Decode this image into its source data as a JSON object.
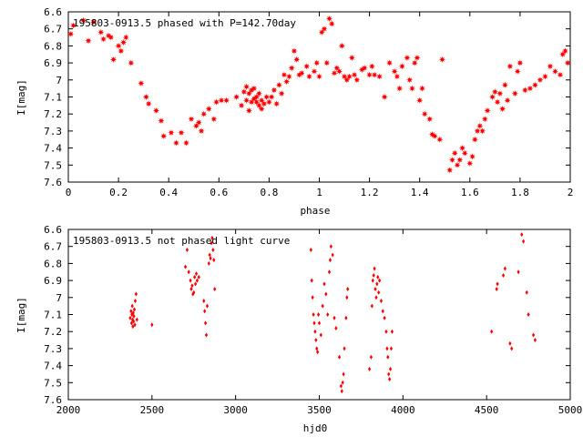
{
  "colors": {
    "points": "#ff0000",
    "axes": "#000000",
    "background": "#ffffff"
  },
  "chart_data": [
    {
      "type": "scatter",
      "title": "195803-0913.5 phased with P=142.70day",
      "xlabel": "phase",
      "ylabel": "I[mag]",
      "xlim": [
        0,
        2
      ],
      "ylim": [
        6.6,
        7.6
      ],
      "y_inverted": true,
      "grid": false,
      "marker": "star",
      "xticks": [
        0,
        0.2,
        0.4,
        0.6,
        0.8,
        1,
        1.2,
        1.4,
        1.6,
        1.8,
        2
      ],
      "xtick_labels": [
        "0",
        "0.2",
        "0.4",
        "0.6",
        "0.8",
        "1",
        "1.2",
        "1.4",
        "1.6",
        "1.8",
        "2"
      ],
      "yticks": [
        6.6,
        6.7,
        6.8,
        6.9,
        7.0,
        7.1,
        7.2,
        7.3,
        7.4,
        7.5,
        7.6
      ],
      "ytick_labels": [
        "6.6",
        "6.7",
        "6.8",
        "6.9",
        "7",
        "7.1",
        "7.2",
        "7.3",
        "7.4",
        "7.5",
        "7.6"
      ],
      "points": [
        [
          0.01,
          6.73
        ],
        [
          0.02,
          6.68
        ],
        [
          0.06,
          6.65
        ],
        [
          0.08,
          6.77
        ],
        [
          0.1,
          6.66
        ],
        [
          0.13,
          6.72
        ],
        [
          0.14,
          6.76
        ],
        [
          0.16,
          6.74
        ],
        [
          0.17,
          6.75
        ],
        [
          0.18,
          6.88
        ],
        [
          0.2,
          6.8
        ],
        [
          0.21,
          6.83
        ],
        [
          0.22,
          6.78
        ],
        [
          0.23,
          6.75
        ],
        [
          0.25,
          6.9
        ],
        [
          0.29,
          7.02
        ],
        [
          0.31,
          7.1
        ],
        [
          0.32,
          7.14
        ],
        [
          0.35,
          7.18
        ],
        [
          0.37,
          7.24
        ],
        [
          0.38,
          7.33
        ],
        [
          0.41,
          7.31
        ],
        [
          0.43,
          7.37
        ],
        [
          0.45,
          7.31
        ],
        [
          0.47,
          7.37
        ],
        [
          0.49,
          7.23
        ],
        [
          0.51,
          7.27
        ],
        [
          0.52,
          7.25
        ],
        [
          0.53,
          7.3
        ],
        [
          0.54,
          7.2
        ],
        [
          0.56,
          7.17
        ],
        [
          0.58,
          7.23
        ],
        [
          0.59,
          7.13
        ],
        [
          0.61,
          7.12
        ],
        [
          0.63,
          7.12
        ],
        [
          0.67,
          7.1
        ],
        [
          0.69,
          7.15
        ],
        [
          0.7,
          7.07
        ],
        [
          0.71,
          7.12
        ],
        [
          0.71,
          7.04
        ],
        [
          0.72,
          7.08
        ],
        [
          0.72,
          7.18
        ],
        [
          0.73,
          7.13
        ],
        [
          0.73,
          7.06
        ],
        [
          0.74,
          7.11
        ],
        [
          0.74,
          7.05
        ],
        [
          0.75,
          7.1
        ],
        [
          0.75,
          7.13
        ],
        [
          0.76,
          7.08
        ],
        [
          0.76,
          7.15
        ],
        [
          0.77,
          7.12
        ],
        [
          0.77,
          7.17
        ],
        [
          0.78,
          7.14
        ],
        [
          0.79,
          7.1
        ],
        [
          0.8,
          7.13
        ],
        [
          0.81,
          7.1
        ],
        [
          0.82,
          7.06
        ],
        [
          0.83,
          7.14
        ],
        [
          0.84,
          7.03
        ],
        [
          0.85,
          7.08
        ],
        [
          0.86,
          6.97
        ],
        [
          0.87,
          7.01
        ],
        [
          0.88,
          6.98
        ],
        [
          0.89,
          6.93
        ],
        [
          0.9,
          6.83
        ],
        [
          0.91,
          6.88
        ],
        [
          0.92,
          6.97
        ],
        [
          0.93,
          6.96
        ],
        [
          0.95,
          6.92
        ],
        [
          0.96,
          6.98
        ],
        [
          0.98,
          6.95
        ],
        [
          0.99,
          6.9
        ],
        [
          1.0,
          6.98
        ],
        [
          1.01,
          6.72
        ],
        [
          1.02,
          6.7
        ],
        [
          1.03,
          6.9
        ],
        [
          1.04,
          6.64
        ],
        [
          1.05,
          6.67
        ],
        [
          1.06,
          6.96
        ],
        [
          1.07,
          6.93
        ],
        [
          1.08,
          6.95
        ],
        [
          1.09,
          6.8
        ],
        [
          1.1,
          6.98
        ],
        [
          1.11,
          7.0
        ],
        [
          1.12,
          6.98
        ],
        [
          1.13,
          6.87
        ],
        [
          1.14,
          6.97
        ],
        [
          1.15,
          7.0
        ],
        [
          1.17,
          6.94
        ],
        [
          1.18,
          6.93
        ],
        [
          1.2,
          6.97
        ],
        [
          1.21,
          6.92
        ],
        [
          1.22,
          6.97
        ],
        [
          1.24,
          6.98
        ],
        [
          1.26,
          7.1
        ],
        [
          1.28,
          6.9
        ],
        [
          1.3,
          6.95
        ],
        [
          1.31,
          6.98
        ],
        [
          1.32,
          7.05
        ],
        [
          1.33,
          6.92
        ],
        [
          1.35,
          6.87
        ],
        [
          1.36,
          7.0
        ],
        [
          1.37,
          7.05
        ],
        [
          1.38,
          6.9
        ],
        [
          1.39,
          6.87
        ],
        [
          1.4,
          7.12
        ],
        [
          1.41,
          7.05
        ],
        [
          1.42,
          7.2
        ],
        [
          1.44,
          7.23
        ],
        [
          1.45,
          7.32
        ],
        [
          1.46,
          7.33
        ],
        [
          1.48,
          7.35
        ],
        [
          1.49,
          6.88
        ],
        [
          1.52,
          7.53
        ],
        [
          1.53,
          7.47
        ],
        [
          1.54,
          7.43
        ],
        [
          1.55,
          7.5
        ],
        [
          1.56,
          7.47
        ],
        [
          1.57,
          7.4
        ],
        [
          1.58,
          7.43
        ],
        [
          1.6,
          7.49
        ],
        [
          1.61,
          7.45
        ],
        [
          1.62,
          7.35
        ],
        [
          1.63,
          7.3
        ],
        [
          1.64,
          7.27
        ],
        [
          1.65,
          7.3
        ],
        [
          1.66,
          7.23
        ],
        [
          1.67,
          7.18
        ],
        [
          1.69,
          7.1
        ],
        [
          1.7,
          7.07
        ],
        [
          1.71,
          7.13
        ],
        [
          1.72,
          7.08
        ],
        [
          1.73,
          7.17
        ],
        [
          1.74,
          7.03
        ],
        [
          1.75,
          7.12
        ],
        [
          1.76,
          6.92
        ],
        [
          1.78,
          7.08
        ],
        [
          1.79,
          6.95
        ],
        [
          1.8,
          6.9
        ],
        [
          1.82,
          7.06
        ],
        [
          1.84,
          7.05
        ],
        [
          1.86,
          7.03
        ],
        [
          1.88,
          7.0
        ],
        [
          1.9,
          6.98
        ],
        [
          1.92,
          6.92
        ],
        [
          1.94,
          6.95
        ],
        [
          1.96,
          6.97
        ],
        [
          1.97,
          6.85
        ],
        [
          1.98,
          6.83
        ],
        [
          1.99,
          6.9
        ]
      ]
    },
    {
      "type": "scatter",
      "title": "195803-0913.5 not phased light curve",
      "xlabel": "hjd0",
      "ylabel": "I[mag]",
      "xlim": [
        2000,
        5000
      ],
      "ylim": [
        6.6,
        7.6
      ],
      "y_inverted": true,
      "grid": false,
      "marker": "diamond",
      "xticks": [
        2000,
        2500,
        3000,
        3500,
        4000,
        4500,
        5000
      ],
      "xtick_labels": [
        "2000",
        "2500",
        "3000",
        "3500",
        "4000",
        "4500",
        "5000"
      ],
      "yticks": [
        6.6,
        6.7,
        6.8,
        6.9,
        7.0,
        7.1,
        7.2,
        7.3,
        7.4,
        7.5,
        7.6
      ],
      "ytick_labels": [
        "6.6",
        "6.7",
        "6.8",
        "6.9",
        "7",
        "7.1",
        "7.2",
        "7.3",
        "7.4",
        "7.5",
        "7.6"
      ],
      "points": [
        [
          2370,
          7.12
        ],
        [
          2375,
          7.08
        ],
        [
          2378,
          7.15
        ],
        [
          2380,
          7.1
        ],
        [
          2382,
          7.05
        ],
        [
          2384,
          7.13
        ],
        [
          2386,
          7.17
        ],
        [
          2388,
          7.09
        ],
        [
          2390,
          7.14
        ],
        [
          2392,
          7.11
        ],
        [
          2395,
          7.07
        ],
        [
          2398,
          7.16
        ],
        [
          2400,
          7.02
        ],
        [
          2405,
          6.98
        ],
        [
          2410,
          7.13
        ],
        [
          2500,
          7.16
        ],
        [
          2700,
          6.82
        ],
        [
          2710,
          6.72
        ],
        [
          2720,
          6.85
        ],
        [
          2730,
          6.9
        ],
        [
          2735,
          6.95
        ],
        [
          2740,
          6.93
        ],
        [
          2745,
          6.98
        ],
        [
          2750,
          6.97
        ],
        [
          2755,
          6.88
        ],
        [
          2760,
          6.92
        ],
        [
          2765,
          6.86
        ],
        [
          2770,
          6.9
        ],
        [
          2780,
          6.88
        ],
        [
          2810,
          7.02
        ],
        [
          2815,
          7.08
        ],
        [
          2820,
          7.15
        ],
        [
          2825,
          7.22
        ],
        [
          2830,
          7.05
        ],
        [
          2840,
          6.8
        ],
        [
          2845,
          6.75
        ],
        [
          2850,
          6.77
        ],
        [
          2855,
          6.68
        ],
        [
          2860,
          6.65
        ],
        [
          2865,
          6.72
        ],
        [
          2870,
          6.78
        ],
        [
          2875,
          6.95
        ],
        [
          3450,
          6.72
        ],
        [
          3455,
          6.9
        ],
        [
          3460,
          7.0
        ],
        [
          3465,
          7.1
        ],
        [
          3470,
          7.15
        ],
        [
          3475,
          7.2
        ],
        [
          3480,
          7.25
        ],
        [
          3485,
          7.3
        ],
        [
          3490,
          7.32
        ],
        [
          3495,
          7.1
        ],
        [
          3500,
          7.15
        ],
        [
          3510,
          7.22
        ],
        [
          3520,
          7.05
        ],
        [
          3530,
          6.92
        ],
        [
          3540,
          6.98
        ],
        [
          3550,
          7.1
        ],
        [
          3560,
          6.85
        ],
        [
          3565,
          6.78
        ],
        [
          3570,
          6.7
        ],
        [
          3580,
          6.75
        ],
        [
          3590,
          7.12
        ],
        [
          3600,
          7.18
        ],
        [
          3620,
          7.35
        ],
        [
          3630,
          7.52
        ],
        [
          3635,
          7.55
        ],
        [
          3640,
          7.5
        ],
        [
          3645,
          7.45
        ],
        [
          3650,
          7.3
        ],
        [
          3660,
          7.12
        ],
        [
          3665,
          7.0
        ],
        [
          3670,
          6.95
        ],
        [
          3800,
          7.42
        ],
        [
          3810,
          7.35
        ],
        [
          3815,
          7.05
        ],
        [
          3820,
          6.9
        ],
        [
          3825,
          6.87
        ],
        [
          3830,
          6.83
        ],
        [
          3835,
          6.95
        ],
        [
          3840,
          7.0
        ],
        [
          3845,
          6.92
        ],
        [
          3850,
          6.88
        ],
        [
          3855,
          6.97
        ],
        [
          3860,
          6.9
        ],
        [
          3870,
          7.02
        ],
        [
          3880,
          7.08
        ],
        [
          3890,
          7.12
        ],
        [
          3900,
          7.2
        ],
        [
          3905,
          7.3
        ],
        [
          3910,
          7.35
        ],
        [
          3915,
          7.45
        ],
        [
          3920,
          7.48
        ],
        [
          3925,
          7.42
        ],
        [
          3930,
          7.3
        ],
        [
          3935,
          7.2
        ],
        [
          4530,
          7.2
        ],
        [
          4560,
          6.95
        ],
        [
          4565,
          6.92
        ],
        [
          4600,
          6.87
        ],
        [
          4610,
          6.83
        ],
        [
          4640,
          7.27
        ],
        [
          4650,
          7.3
        ],
        [
          4690,
          6.85
        ],
        [
          4710,
          6.63
        ],
        [
          4720,
          6.67
        ],
        [
          4740,
          6.97
        ],
        [
          4750,
          7.1
        ],
        [
          4780,
          7.22
        ],
        [
          4790,
          7.25
        ]
      ]
    }
  ]
}
